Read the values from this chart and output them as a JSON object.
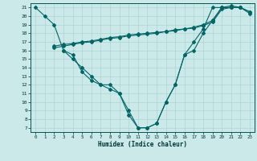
{
  "xlabel": "Humidex (Indice chaleur)",
  "bg_color": "#cce9e9",
  "grid_color": "#aad4d4",
  "line_color": "#006666",
  "xlim": [
    -0.5,
    23.5
  ],
  "ylim": [
    6.5,
    21.5
  ],
  "x_ticks": [
    0,
    1,
    2,
    3,
    4,
    5,
    6,
    7,
    8,
    9,
    10,
    11,
    12,
    13,
    14,
    15,
    16,
    17,
    18,
    19,
    20,
    21,
    22,
    23
  ],
  "y_ticks": [
    7,
    8,
    9,
    10,
    11,
    12,
    13,
    14,
    15,
    16,
    17,
    18,
    19,
    20,
    21
  ],
  "line1_x": [
    0,
    1,
    2,
    3,
    4,
    5,
    6,
    7,
    8,
    9,
    10,
    11,
    12,
    13,
    14,
    15,
    16,
    17,
    18,
    19,
    20,
    21,
    22
  ],
  "line1_y": [
    21,
    20,
    19,
    16,
    15,
    14,
    13,
    12,
    12,
    11,
    9,
    7,
    7,
    7.5,
    10,
    12,
    15.5,
    16,
    18,
    19.5,
    21,
    21,
    21
  ],
  "line2_x": [
    3,
    4,
    5,
    6,
    7,
    8,
    9,
    10,
    11,
    12,
    13,
    14,
    15,
    16,
    17,
    18,
    19,
    20,
    21,
    22,
    23
  ],
  "line2_y": [
    16,
    15.5,
    13.5,
    12.5,
    12,
    11.5,
    11,
    8.5,
    7,
    7,
    7.5,
    10,
    12,
    15.5,
    17,
    18.5,
    21,
    21,
    21,
    21,
    20.5
  ],
  "line3_x": [
    2,
    3,
    4,
    5,
    6,
    7,
    8,
    9,
    10,
    11,
    12,
    13,
    14,
    15,
    16,
    17,
    18,
    19,
    20,
    21,
    22,
    23
  ],
  "line3_y": [
    16.5,
    16.7,
    16.8,
    17.0,
    17.1,
    17.3,
    17.5,
    17.6,
    17.8,
    17.9,
    18.0,
    18.1,
    18.2,
    18.4,
    18.5,
    18.7,
    19.0,
    19.5,
    21.0,
    21.2,
    21.0,
    20.5
  ],
  "line4_x": [
    2,
    3,
    4,
    5,
    6,
    7,
    8,
    9,
    10,
    11,
    12,
    13,
    14,
    15,
    16,
    17,
    18,
    19,
    20,
    21,
    22,
    23
  ],
  "line4_y": [
    16.3,
    16.5,
    16.7,
    16.9,
    17.0,
    17.2,
    17.4,
    17.5,
    17.7,
    17.8,
    17.9,
    18.0,
    18.2,
    18.3,
    18.5,
    18.6,
    18.9,
    19.3,
    20.8,
    21.0,
    21.0,
    20.3
  ]
}
